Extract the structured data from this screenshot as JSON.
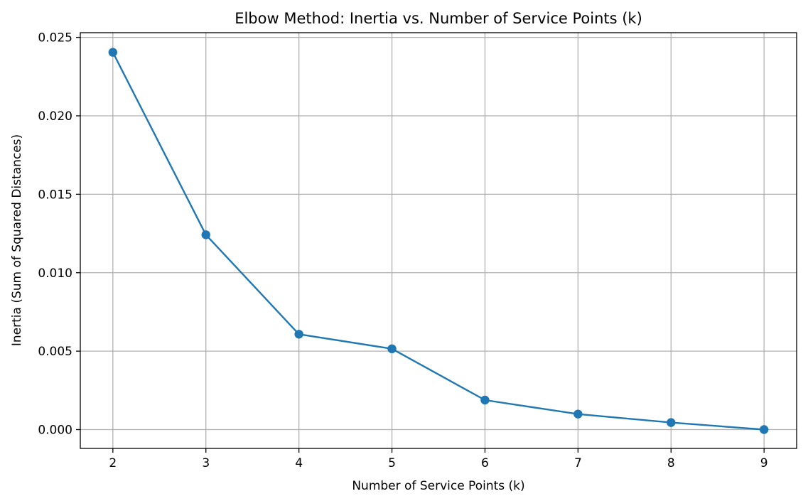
{
  "chart_data": {
    "type": "line",
    "title": "Elbow Method: Inertia vs. Number of Service Points (k)",
    "xlabel": "Number of Service Points (k)",
    "ylabel": "Inertia (Sum of Squared Distances)",
    "x": [
      2,
      3,
      4,
      5,
      6,
      7,
      8,
      9
    ],
    "series": [
      {
        "values": [
          0.02405,
          0.01242,
          0.00608,
          0.00515,
          0.00188,
          0.00099,
          0.00045,
          0.0
        ]
      }
    ],
    "xticks": [
      "2",
      "3",
      "4",
      "5",
      "6",
      "7",
      "8",
      "9"
    ],
    "yticks": [
      "0.000",
      "0.005",
      "0.010",
      "0.015",
      "0.020",
      "0.025"
    ],
    "xlim": [
      1.65,
      9.35
    ],
    "ylim": [
      -0.0012,
      0.0253
    ],
    "grid": true,
    "legend": false,
    "line_color": "#1f77b4",
    "marker": "circle"
  }
}
